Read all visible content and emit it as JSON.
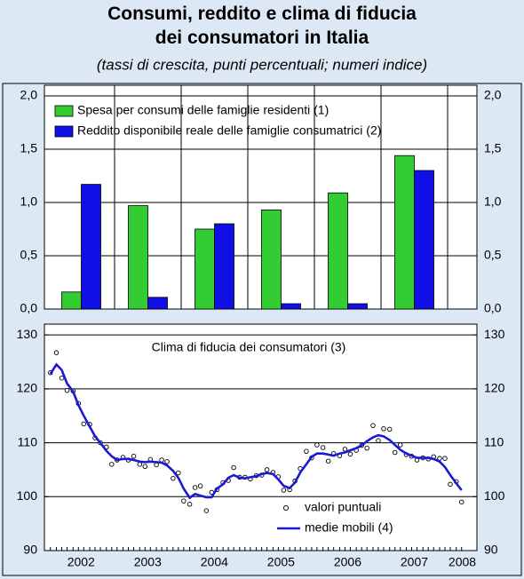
{
  "title": "Consumi, reddito e clima di fiducia\ndei consumatori in Italia",
  "subtitle": "(tassi di crescita, punti percentuali; numeri indice)",
  "chart_data": [
    {
      "type": "bar",
      "categories": [
        "2002",
        "2003",
        "2004",
        "2005",
        "2006",
        "2007"
      ],
      "series": [
        {
          "name": "Spesa per consumi delle famiglie residenti (1)",
          "color": "#33cc33",
          "values": [
            0.16,
            0.97,
            0.75,
            0.93,
            1.09,
            1.44
          ]
        },
        {
          "name": "Reddito disponibile reale delle famiglie consumatrici (2)",
          "color": "#1010e6",
          "values": [
            1.17,
            0.11,
            0.8,
            0.05,
            0.05,
            1.3
          ]
        }
      ],
      "ylim": [
        0,
        2.1
      ],
      "yticks": [
        {
          "value": 0,
          "label": "0,0"
        },
        {
          "value": 0.5,
          "label": "0,5"
        },
        {
          "value": 1,
          "label": "1,0"
        },
        {
          "value": 1.5,
          "label": "1,5"
        },
        {
          "value": 2,
          "label": "2,0"
        }
      ],
      "grid": true,
      "legend": "upper left"
    },
    {
      "type": "line",
      "annotation": "Clima di fiducia dei consumatori (3)",
      "x": [
        2002.04,
        2002.13,
        2002.21,
        2002.29,
        2002.38,
        2002.46,
        2002.54,
        2002.63,
        2002.71,
        2002.79,
        2002.88,
        2002.96,
        2003.04,
        2003.13,
        2003.21,
        2003.29,
        2003.38,
        2003.46,
        2003.54,
        2003.63,
        2003.71,
        2003.79,
        2003.88,
        2003.96,
        2004.04,
        2004.13,
        2004.21,
        2004.29,
        2004.38,
        2004.46,
        2004.54,
        2004.63,
        2004.71,
        2004.79,
        2004.88,
        2004.96,
        2005.04,
        2005.13,
        2005.21,
        2005.29,
        2005.38,
        2005.46,
        2005.54,
        2005.63,
        2005.71,
        2005.79,
        2005.88,
        2005.96,
        2006.04,
        2006.13,
        2006.21,
        2006.29,
        2006.38,
        2006.46,
        2006.54,
        2006.63,
        2006.71,
        2006.79,
        2006.88,
        2006.96,
        2007.04,
        2007.13,
        2007.21,
        2007.29,
        2007.38,
        2007.46,
        2007.54,
        2007.63,
        2007.71,
        2007.79,
        2007.88,
        2007.96,
        2008.04,
        2008.13,
        2008.21
      ],
      "series": [
        {
          "name": "valori puntuali",
          "color": "#000000",
          "marker": "circle",
          "values": [
            123.0,
            126.7,
            122.0,
            119.7,
            119.6,
            117.3,
            113.5,
            113.4,
            110.9,
            110.0,
            109.2,
            106.0,
            106.8,
            107.3,
            106.8,
            107.5,
            106.0,
            105.6,
            106.9,
            105.9,
            106.8,
            106.5,
            103.4,
            104.4,
            99.2,
            98.6,
            101.7,
            102.0,
            97.4,
            100.8,
            101.3,
            102.6,
            103.0,
            105.4,
            103.6,
            103.6,
            103.3,
            103.9,
            104.0,
            105.0,
            104.5,
            103.7,
            101.2,
            101.3,
            102.9,
            105.2,
            108.4,
            107.2,
            109.6,
            109.1,
            106.6,
            108.0,
            107.6,
            108.8,
            107.9,
            108.6,
            109.5,
            109.0,
            113.2,
            110.4,
            112.6,
            112.5,
            108.2,
            109.6,
            107.8,
            107.5,
            106.8,
            107.2,
            107.0,
            107.4,
            107.1,
            107.1,
            102.3,
            102.8,
            99.0
          ]
        },
        {
          "name": "medie mobili (4)",
          "color": "#1a1ad6",
          "marker": "line",
          "values": [
            122.8,
            124.5,
            123.5,
            121.0,
            119.5,
            117.0,
            115.0,
            113.0,
            111.2,
            110.0,
            108.5,
            107.5,
            106.8,
            107.0,
            107.0,
            106.8,
            106.5,
            106.4,
            106.5,
            106.4,
            106.3,
            105.8,
            104.8,
            103.5,
            101.5,
            99.8,
            100.5,
            100.2,
            99.9,
            99.9,
            101.5,
            102.3,
            103.5,
            104.0,
            103.5,
            103.4,
            103.6,
            103.8,
            104.2,
            104.4,
            104.2,
            103.2,
            102.0,
            101.6,
            102.6,
            104.5,
            106.0,
            107.4,
            108.0,
            108.0,
            107.8,
            107.6,
            108.0,
            108.2,
            108.6,
            109.0,
            109.5,
            110.3,
            111.0,
            111.4,
            111.2,
            110.5,
            109.6,
            108.7,
            108.0,
            107.6,
            107.2,
            107.2,
            107.2,
            107.0,
            106.5,
            105.5,
            104.0,
            102.5,
            101.2
          ]
        }
      ],
      "xlim": [
        2001.95,
        2008.44
      ],
      "xticks": [
        {
          "value": 2002.5,
          "label": "2002"
        },
        {
          "value": 2003.5,
          "label": "2003"
        },
        {
          "value": 2004.5,
          "label": "2004"
        },
        {
          "value": 2005.5,
          "label": "2005"
        },
        {
          "value": 2006.5,
          "label": "2006"
        },
        {
          "value": 2007.5,
          "label": "2007"
        },
        {
          "value": 2008.22,
          "label": "2008"
        }
      ],
      "ylim": [
        90,
        132
      ],
      "yticks": [
        90,
        100,
        110,
        120,
        130
      ],
      "grid": true,
      "legend": "lower center"
    }
  ]
}
